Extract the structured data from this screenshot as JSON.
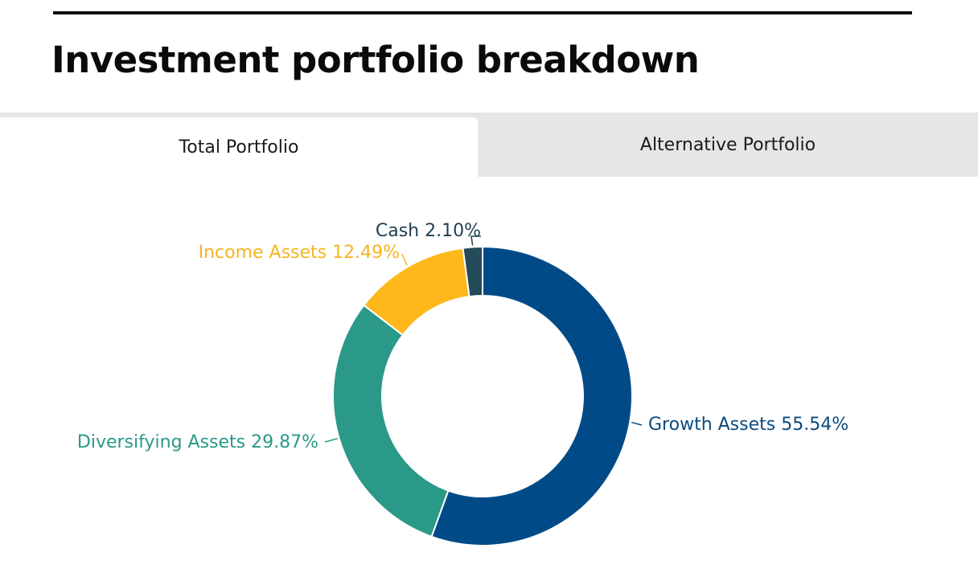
{
  "page": {
    "title": "Investment portfolio breakdown"
  },
  "tabs": [
    {
      "label": "Total Portfolio",
      "active": true
    },
    {
      "label": "Alternative Portfolio",
      "active": false
    }
  ],
  "chart_data": {
    "type": "pie",
    "donut": true,
    "categories": [
      "Growth Assets",
      "Diversifying Assets",
      "Income Assets",
      "Cash"
    ],
    "values": [
      55.54,
      29.87,
      12.49,
      2.1
    ],
    "labels": [
      "Growth Assets 55.54%",
      "Diversifying Assets 29.87%",
      "Income Assets 12.49%",
      "Cash 2.10%"
    ],
    "colors": [
      "#004b87",
      "#2a9988",
      "#ffb81c",
      "#244b5a"
    ],
    "label_colors": [
      "#0a4a7e",
      "#2a9988",
      "#f6b420",
      "#1f4050"
    ]
  }
}
